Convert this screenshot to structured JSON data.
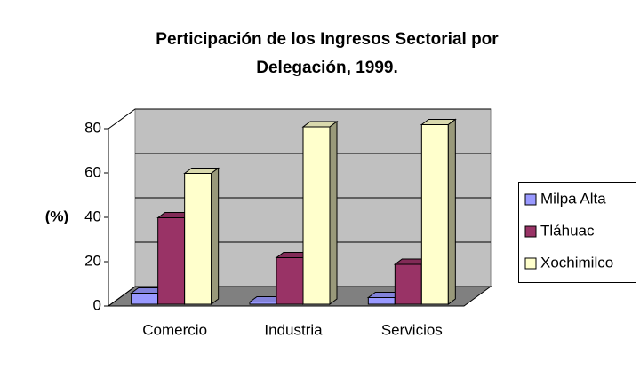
{
  "chart_data": {
    "type": "bar3d",
    "title": [
      "Perticipación de los Ingresos Sectorial por",
      "Delegación, 1999."
    ],
    "ylabel": "(%)",
    "categories": [
      "Comercio",
      "Industria",
      "Servicios"
    ],
    "series": [
      {
        "name": "Milpa Alta",
        "color": "#9999ff",
        "values": [
          5,
          1,
          3
        ]
      },
      {
        "name": "Tláhuac",
        "color": "#993366",
        "values": [
          39,
          21,
          18
        ]
      },
      {
        "name": "Xochimilco",
        "color": "#ffffcc",
        "values": [
          59,
          80,
          81
        ]
      }
    ],
    "ylim": [
      0,
      80
    ],
    "yticks": [
      0,
      20,
      40,
      60,
      80
    ],
    "grid": true,
    "legend": "right"
  }
}
